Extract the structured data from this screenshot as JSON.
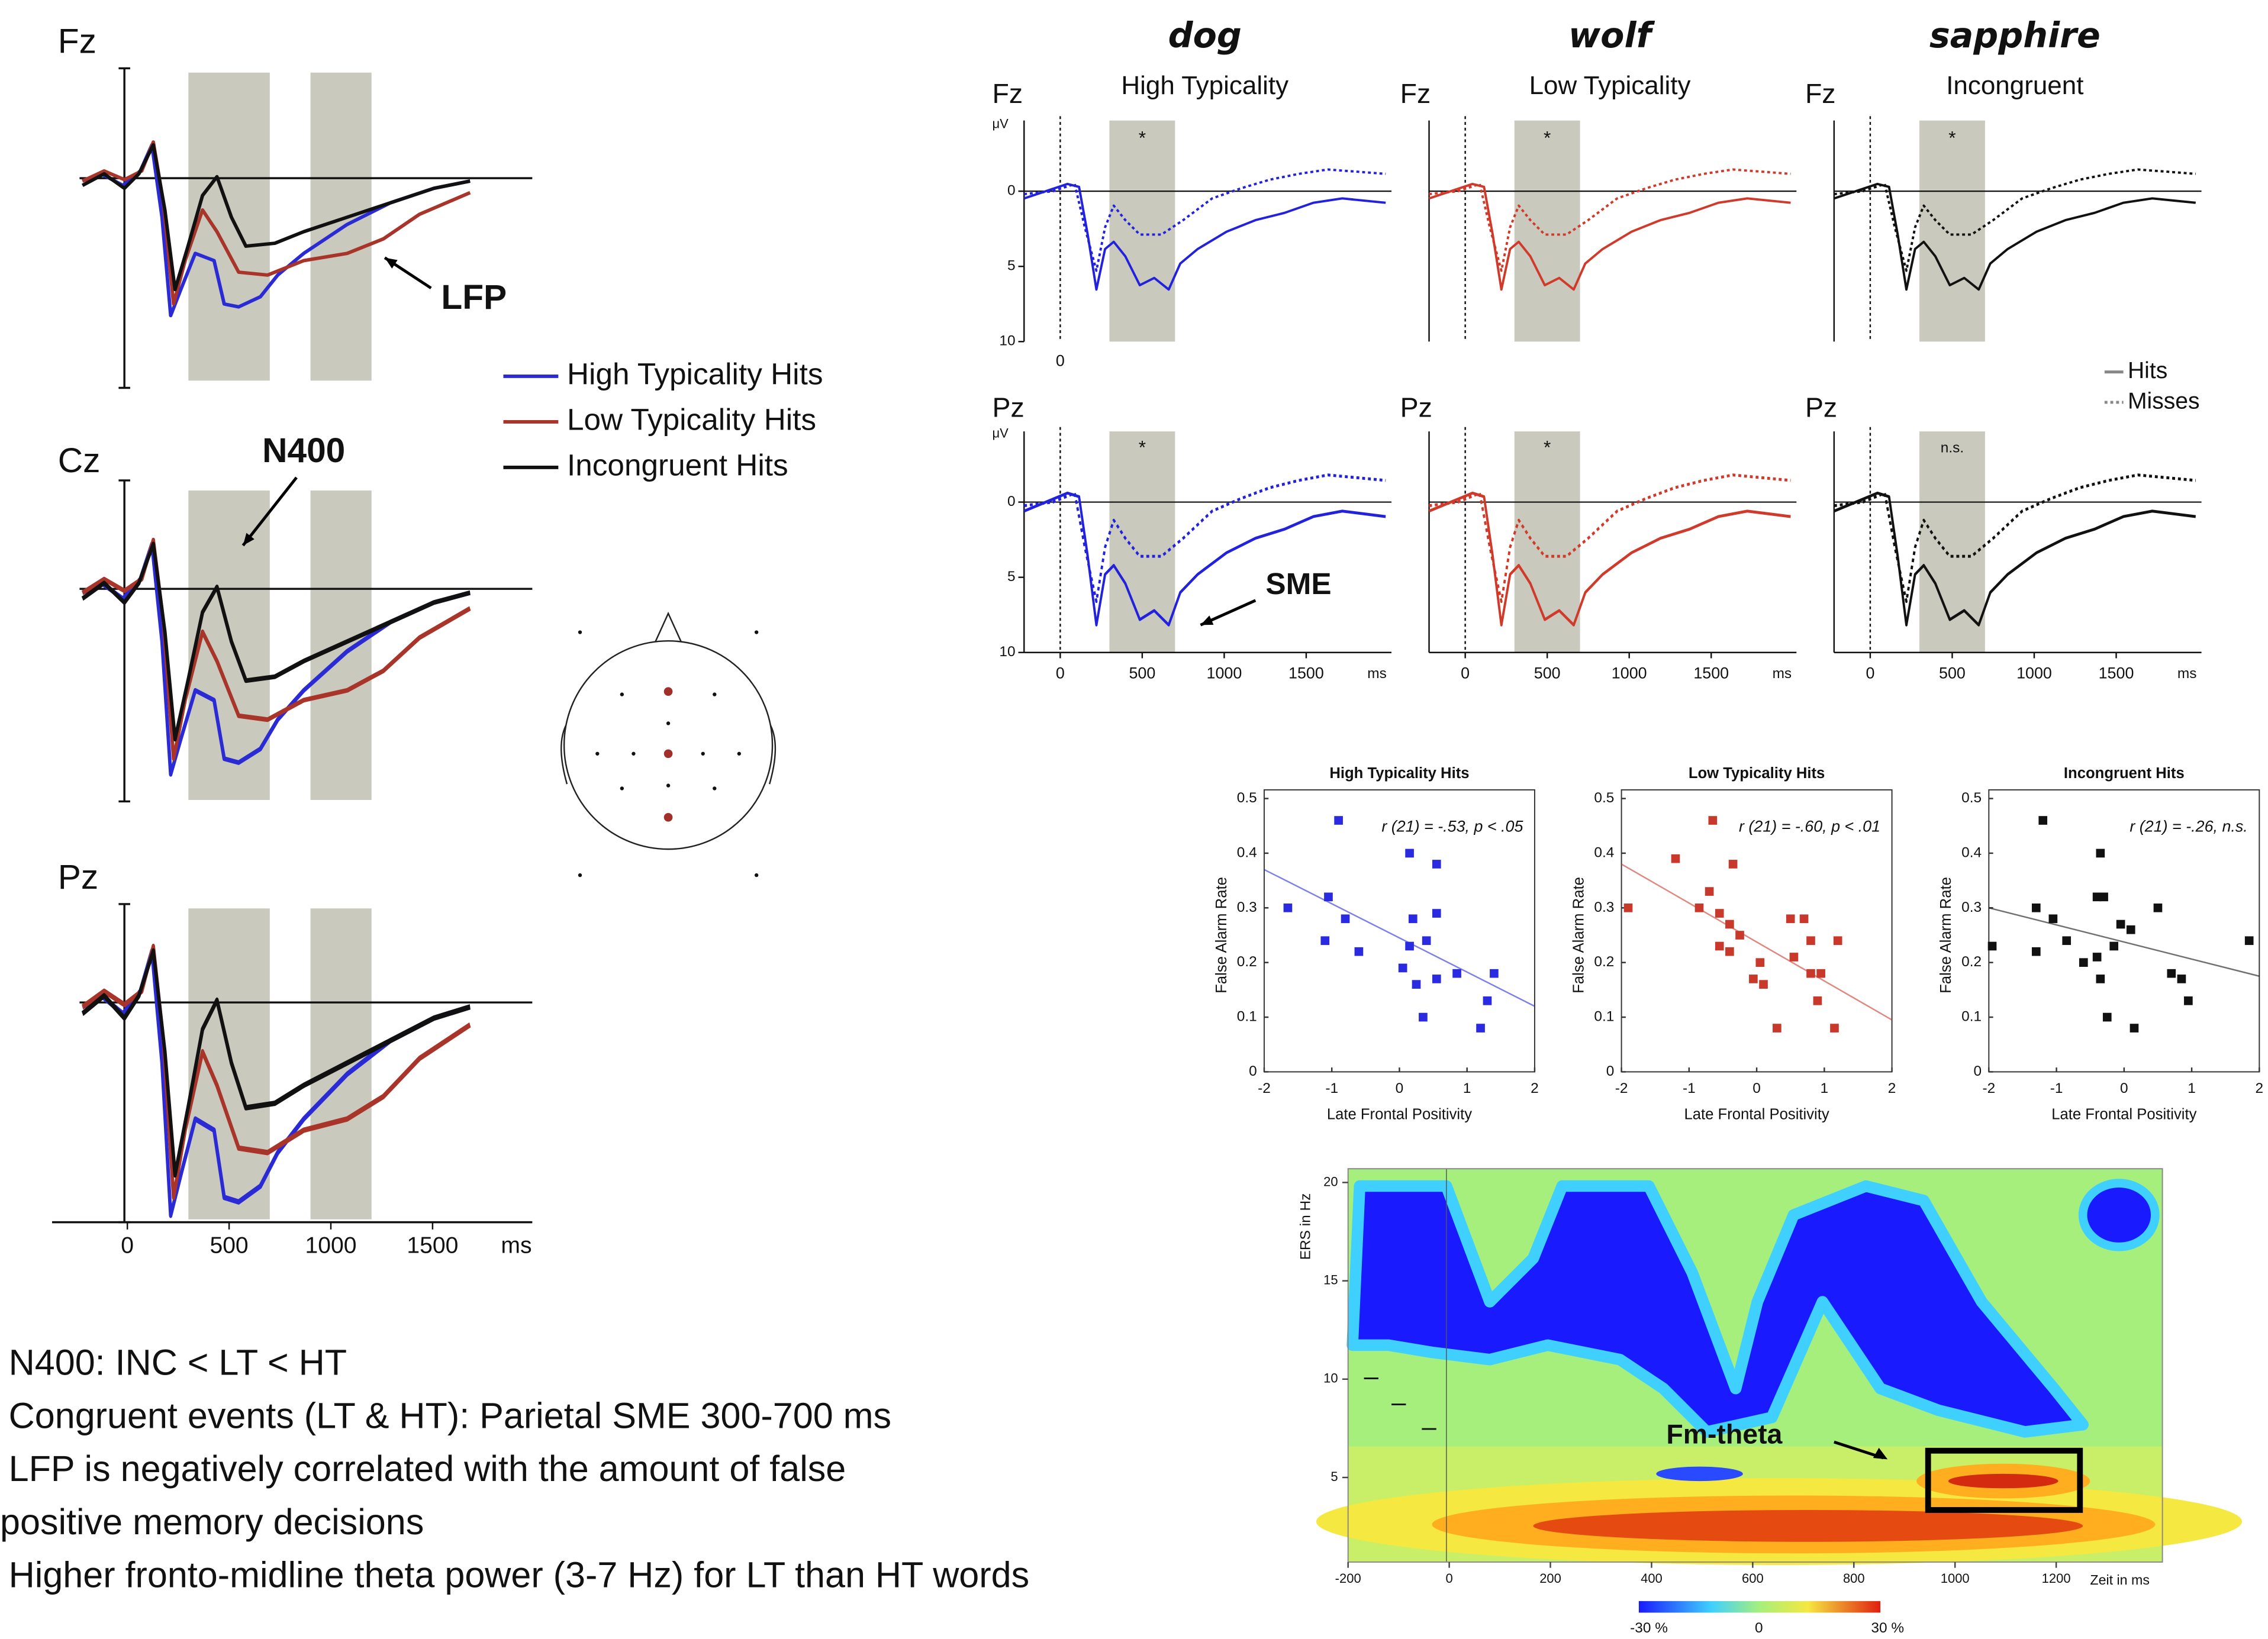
{
  "left_panel": {
    "channels": [
      "Fz",
      "Cz",
      "Pz"
    ],
    "xlim": [
      -370,
      1990
    ],
    "xticks": [
      0,
      500,
      1000,
      1500
    ],
    "x_unit": "ms",
    "windows_ms": [
      [
        300,
        700
      ],
      [
        900,
        1200
      ]
    ],
    "legend": [
      {
        "name": "High Typicality Hits",
        "color": "#2b2bd6"
      },
      {
        "name": "Low Typicality Hits",
        "color": "#a8342a"
      },
      {
        "name": "Incongruent Hits",
        "color": "#111111"
      }
    ],
    "annotations": [
      "LFP",
      "N400"
    ]
  },
  "erp_panel": {
    "columns": [
      {
        "word": "dog",
        "condition": "High Typicality",
        "word_color": "#4a86e0",
        "color": "#2222dd",
        "significance": [
          "*",
          "*"
        ]
      },
      {
        "word": "wolf",
        "condition": "Low Typicality",
        "word_color": "#d03a2a",
        "color": "#d03a2a",
        "significance": [
          "*",
          "*"
        ]
      },
      {
        "word": "sapphire",
        "condition": "Incongruent",
        "word_color": "#111111",
        "color": "#111111",
        "significance": [
          "*",
          "n.s."
        ]
      }
    ],
    "rows": [
      "Fz",
      "Pz"
    ],
    "y_unit": "μV",
    "ylim": [
      10,
      -4.7
    ],
    "yticks": [
      0,
      5,
      10
    ],
    "xlim": [
      -220,
      2020
    ],
    "xticks": [
      0,
      500,
      1000,
      1500
    ],
    "x_unit": "ms",
    "window_ms": [
      300,
      700
    ],
    "legend": [
      "Hits",
      "Misses"
    ],
    "annotation": "SME"
  },
  "scatter_plots": [
    {
      "type": "scatter",
      "title": "High Typicality Hits",
      "x_label": "Late Frontal Positivity",
      "y_label": "False Alarm Rate",
      "stat": "r (21) = -.53, p < .05",
      "color": "#2a2ae0",
      "xlim": [
        -2,
        2
      ],
      "ylim": [
        0,
        0.5
      ],
      "xticks": [
        -2,
        -1,
        0,
        1,
        2
      ],
      "yticks": [
        0,
        0.1,
        0.2,
        0.3,
        0.4,
        0.5
      ],
      "x": [
        -0.9,
        0.15,
        0.55,
        -1.65,
        -1.05,
        -0.8,
        -1.1,
        0.2,
        0.55,
        -0.6,
        0.15,
        0.4,
        0.05,
        0.55,
        0.25,
        0.85,
        1.4,
        1.3,
        0.35,
        1.2
      ],
      "y": [
        0.46,
        0.4,
        0.38,
        0.3,
        0.32,
        0.28,
        0.24,
        0.28,
        0.29,
        0.22,
        0.23,
        0.24,
        0.19,
        0.17,
        0.16,
        0.18,
        0.18,
        0.13,
        0.1,
        0.08
      ],
      "fit": {
        "x": [
          -2,
          2
        ],
        "y": [
          0.37,
          0.12
        ]
      }
    },
    {
      "type": "scatter",
      "title": "Low Typicality Hits",
      "x_label": "Late Frontal Positivity",
      "y_label": "False Alarm Rate",
      "stat": "r (21) = -.60, p < .01",
      "color": "#c8392b",
      "xlim": [
        -2,
        2
      ],
      "ylim": [
        0,
        0.5
      ],
      "xticks": [
        -2,
        -1,
        0,
        1,
        2
      ],
      "yticks": [
        0,
        0.1,
        0.2,
        0.3,
        0.4,
        0.5
      ],
      "x": [
        -1.9,
        -1.2,
        -0.65,
        -0.35,
        -0.7,
        -0.55,
        -0.4,
        -0.85,
        -0.55,
        -0.4,
        -0.25,
        -0.05,
        0.1,
        0.05,
        0.5,
        0.7,
        0.8,
        0.55,
        0.8,
        0.95,
        0.9,
        1.2,
        1.15,
        0.3
      ],
      "y": [
        0.3,
        0.39,
        0.46,
        0.38,
        0.33,
        0.29,
        0.27,
        0.3,
        0.23,
        0.22,
        0.25,
        0.17,
        0.16,
        0.2,
        0.28,
        0.28,
        0.24,
        0.21,
        0.18,
        0.18,
        0.13,
        0.24,
        0.08,
        0.08
      ],
      "fit": {
        "x": [
          -2,
          2
        ],
        "y": [
          0.38,
          0.095
        ]
      }
    },
    {
      "type": "scatter",
      "title": "Incongruent Hits",
      "x_label": "Late Frontal Positivity",
      "y_label": "False Alarm Rate",
      "stat": "r (21) = -.26, n.s.",
      "color": "#111111",
      "xlim": [
        -2,
        2
      ],
      "ylim": [
        0,
        0.5
      ],
      "xticks": [
        -2,
        -1,
        0,
        1,
        2
      ],
      "yticks": [
        0,
        0.1,
        0.2,
        0.3,
        0.4,
        0.5
      ],
      "x": [
        -1.2,
        -0.35,
        0.5,
        -0.3,
        -0.4,
        -1.3,
        -1.05,
        -1.95,
        -1.3,
        -0.85,
        -0.6,
        -0.4,
        -0.05,
        0.1,
        -0.15,
        -0.35,
        -0.25,
        0.15,
        0.7,
        0.85,
        0.95,
        1.85
      ],
      "y": [
        0.46,
        0.4,
        0.3,
        0.32,
        0.32,
        0.3,
        0.28,
        0.23,
        0.22,
        0.24,
        0.2,
        0.21,
        0.27,
        0.26,
        0.23,
        0.17,
        0.1,
        0.08,
        0.18,
        0.17,
        0.13,
        0.24
      ],
      "fit": {
        "x": [
          -2,
          2
        ],
        "y": [
          0.3,
          0.175
        ]
      }
    }
  ],
  "tf_plot": {
    "y_label": "ERS in Hz",
    "ylim": [
      0.7,
      20.7
    ],
    "yticks": [
      20,
      15,
      10,
      5
    ],
    "xlim": [
      -200,
      1410
    ],
    "xticks": [
      -200,
      0,
      200,
      400,
      600,
      800,
      1000,
      1200
    ],
    "x_label": "Zeit in ms",
    "colorbar": [
      "-30 %",
      "0",
      "30 %"
    ],
    "annotation": "Fm-theta"
  },
  "bullets": [
    "N400: INC < LT < HT",
    "Congruent events (LT & HT): Parietal SME 300-700 ms",
    "LFP is negatively correlated with the amount of false",
    "positive memory decisions",
    "Higher fronto-midline theta power (3-7 Hz) for LT than HT words"
  ]
}
